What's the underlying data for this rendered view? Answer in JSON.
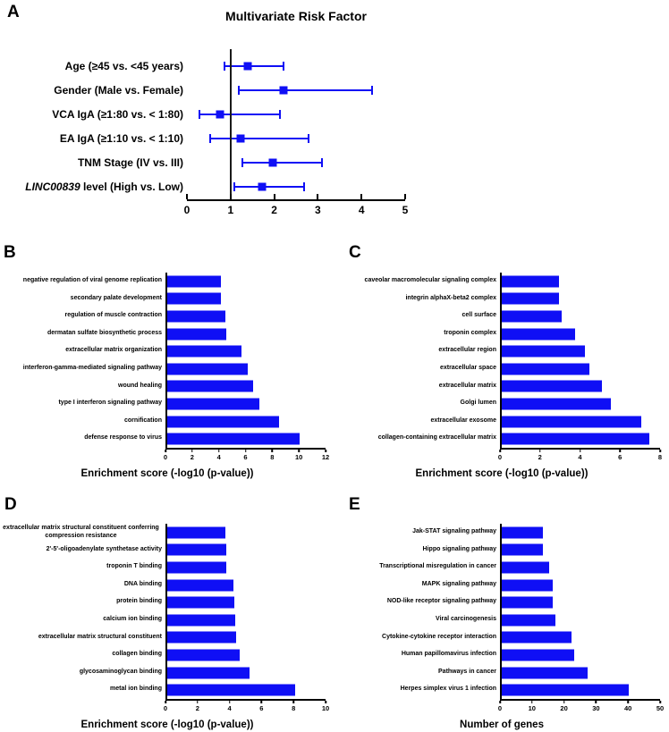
{
  "colors": {
    "bar_blue": "#0f0ff5",
    "axis_black": "#000000",
    "background": "#ffffff"
  },
  "chart_data": [
    {
      "panel": "A",
      "type": "scatter",
      "subtype": "forest-plot",
      "title": "Multivariate Risk Factor",
      "xlim": [
        0,
        5
      ],
      "xticks": [
        0,
        1,
        2,
        3,
        4,
        5
      ],
      "ref_line_x": 1,
      "rows": [
        {
          "label": "Age (≥45 vs. <45 years)",
          "point": 1.4,
          "lo": 0.87,
          "hi": 2.21
        },
        {
          "label": "Gender (Male vs. Female)",
          "point": 2.22,
          "lo": 1.18,
          "hi": 4.25
        },
        {
          "label": "VCA IgA (≥1:80 vs. < 1:80)",
          "point": 0.76,
          "lo": 0.28,
          "hi": 2.14
        },
        {
          "label": "EA IgA (≥1:10 vs. < 1:10)",
          "point": 1.23,
          "lo": 0.53,
          "hi": 2.78
        },
        {
          "label": "TNM Stage (IV vs. III)",
          "point": 1.96,
          "lo": 1.28,
          "hi": 3.09
        },
        {
          "italic_prefix": "LINC00839",
          "label": " level (High vs. Low)",
          "point": 1.72,
          "lo": 1.08,
          "hi": 2.68
        }
      ]
    },
    {
      "panel": "B",
      "type": "bar",
      "orientation": "horizontal",
      "categories": [
        "negative regulation of viral genome replication",
        "secondary palate development",
        "regulation of muscle contraction",
        "dermatan sulfate biosynthetic process",
        "extracellular matrix organization",
        "interferon-gamma-mediated signaling pathway",
        "wound healing",
        "type I interferon signaling pathway",
        "cornification",
        "defense response to virus"
      ],
      "values": [
        4.1,
        4.1,
        4.4,
        4.45,
        5.65,
        6.1,
        6.5,
        7.0,
        8.5,
        10.0
      ],
      "xlabel": "Enrichment score (-log10 (p-value))",
      "xlim": [
        0,
        12
      ],
      "xticks": [
        0,
        2,
        4,
        6,
        8,
        10,
        12
      ]
    },
    {
      "panel": "C",
      "type": "bar",
      "orientation": "horizontal",
      "categories": [
        "caveolar macromolecular signaling complex",
        "integrin alphaX-beta2 complex",
        "cell surface",
        "troponin complex",
        "extracellular region",
        "extracellular space",
        "extracellular matrix",
        "Golgi lumen",
        "extracellular exosome",
        "collagen-containing extracellular matrix"
      ],
      "values": [
        2.9,
        2.9,
        3.05,
        3.7,
        4.2,
        4.45,
        5.05,
        5.5,
        7.05,
        7.45
      ],
      "xlabel": "Enrichment score (-log10 (p-value))",
      "xlim": [
        0,
        8
      ],
      "xticks": [
        0,
        2,
        4,
        6,
        8
      ]
    },
    {
      "panel": "D",
      "type": "bar",
      "orientation": "horizontal",
      "categories": [
        "extracellular matrix structural constituent conferring compression resistance",
        "2'-5'-oligoadenylate synthetase activity",
        "troponin T binding",
        "DNA binding",
        "protein binding",
        "calcium ion binding",
        "extracellular matrix structural constituent",
        "collagen binding",
        "glycosaminoglycan binding",
        "metal ion binding"
      ],
      "values": [
        3.7,
        3.75,
        3.75,
        4.2,
        4.25,
        4.3,
        4.35,
        4.6,
        5.2,
        8.1
      ],
      "xlabel": "Enrichment score (-log10 (p-value))",
      "xlim": [
        0,
        10
      ],
      "xticks": [
        0,
        2,
        4,
        6,
        8,
        10
      ]
    },
    {
      "panel": "E",
      "type": "bar",
      "orientation": "horizontal",
      "categories": [
        "Jak-STAT signaling pathway",
        "Hippo signaling pathway",
        "Transcriptional misregulation in cancer",
        "MAPK signaling pathway",
        "NOD-like receptor signaling pathway",
        "Viral carcinogenesis",
        "Cytokine-cytokine receptor interaction",
        "Human papillomavirus infection",
        "Pathways in cancer",
        "Herpes simplex virus 1 infection"
      ],
      "values": [
        13,
        13,
        15,
        16,
        16,
        17,
        22,
        23,
        27,
        40
      ],
      "xlabel": "Number of genes",
      "xlim": [
        0,
        50
      ],
      "xticks": [
        0,
        10,
        20,
        30,
        40,
        50
      ]
    }
  ]
}
